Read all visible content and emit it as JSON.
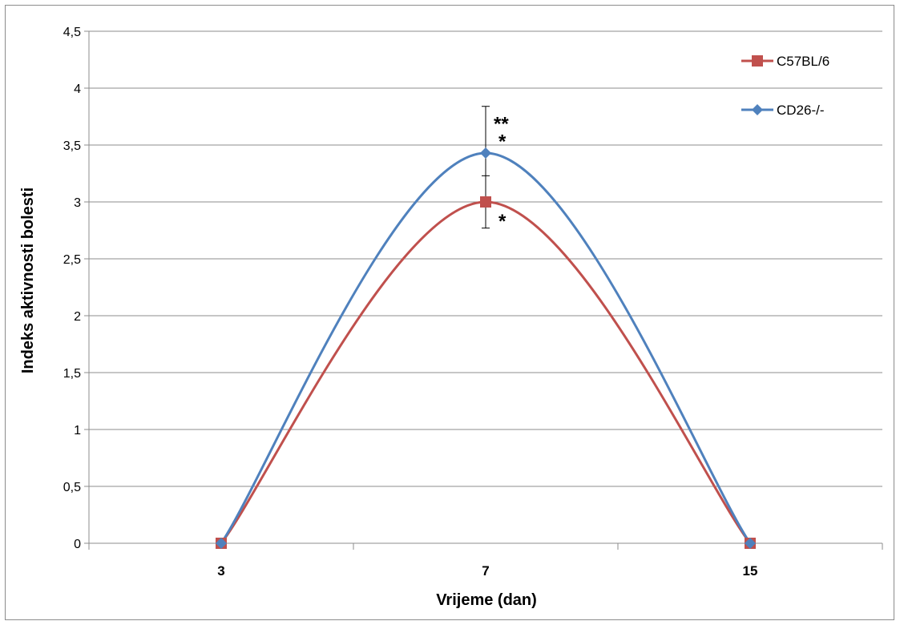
{
  "chart_data": {
    "type": "line",
    "categories": [
      "3",
      "7",
      "15"
    ],
    "ylabel": "Indeks aktivnosti bolesti",
    "xlabel": "Vrijeme (dan)",
    "ylim": [
      0,
      4.5
    ],
    "yticks": [
      "0",
      "0,5",
      "1",
      "1,5",
      "2",
      "2,5",
      "3",
      "3,5",
      "4",
      "4,5"
    ],
    "grid": true,
    "legend_position": "top-right",
    "smooth": true,
    "series": [
      {
        "name": "C57BL/6",
        "values": [
          0,
          3.0,
          0
        ],
        "error": [
          0,
          0.23,
          0
        ],
        "marker": "square",
        "color": "#c0504d"
      },
      {
        "name": "CD26-/-",
        "values": [
          0,
          3.43,
          0
        ],
        "error": [
          0,
          0.41,
          0
        ],
        "marker": "diamond",
        "color": "#4f81bd"
      }
    ],
    "annotations": [
      {
        "text": "**",
        "category": "7",
        "series": "CD26-/-"
      },
      {
        "text": "*",
        "category": "7",
        "series": "CD26-/-"
      },
      {
        "text": "*",
        "category": "7",
        "series": "C57BL/6"
      }
    ]
  }
}
